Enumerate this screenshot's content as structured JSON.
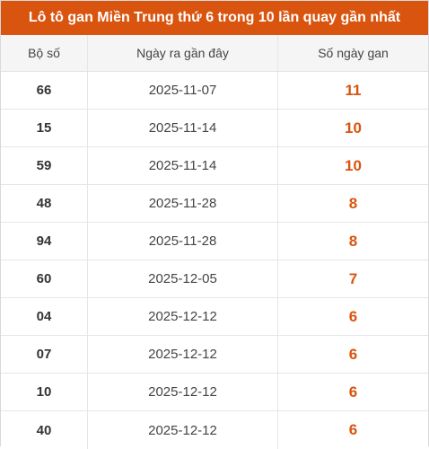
{
  "title": "Lô tô gan Miền Trung thứ 6 trong 10 lần quay gần nhất",
  "columns": [
    "Bộ số",
    "Ngày ra gần đây",
    "Số ngày gan"
  ],
  "rows": [
    {
      "number": "66",
      "date": "2025-11-07",
      "days": "11"
    },
    {
      "number": "15",
      "date": "2025-11-14",
      "days": "10"
    },
    {
      "number": "59",
      "date": "2025-11-14",
      "days": "10"
    },
    {
      "number": "48",
      "date": "2025-11-28",
      "days": "8"
    },
    {
      "number": "94",
      "date": "2025-11-28",
      "days": "8"
    },
    {
      "number": "60",
      "date": "2025-12-05",
      "days": "7"
    },
    {
      "number": "04",
      "date": "2025-12-12",
      "days": "6"
    },
    {
      "number": "07",
      "date": "2025-12-12",
      "days": "6"
    },
    {
      "number": "10",
      "date": "2025-12-12",
      "days": "6"
    },
    {
      "number": "40",
      "date": "2025-12-12",
      "days": "6"
    }
  ],
  "colors": {
    "accent": "#d9540f",
    "header_bg": "#f5f5f5"
  }
}
